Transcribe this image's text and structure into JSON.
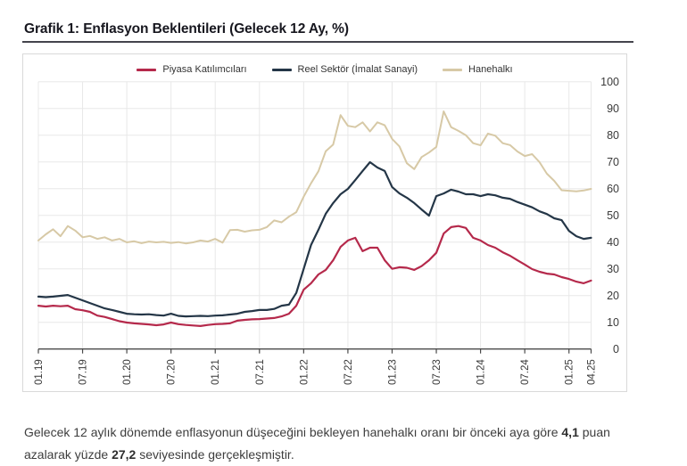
{
  "title": "Grafik 1: Enflasyon Beklentileri (Gelecek 12 Ay, %)",
  "colors": {
    "market": "#b5294b",
    "real_sector": "#243647",
    "household": "#d7c9a6",
    "grid": "#e8e8e8",
    "axis": "#4a4a4a",
    "tick_text": "#3a3a3a",
    "box_border": "#d9d9d9",
    "title_text": "#17171f"
  },
  "legend": [
    {
      "key": "piyasa",
      "label": "Piyasa Katılımcıları",
      "color": "#b5294b"
    },
    {
      "key": "reel",
      "label": "Reel Sektör (İmalat Sanayi)",
      "color": "#243647"
    },
    {
      "key": "hanehalki",
      "label": "Hanehalkı",
      "color": "#d7c9a6"
    }
  ],
  "chart_data": {
    "type": "line",
    "title": "Grafik 1: Enflasyon Beklentileri (Gelecek 12 Ay, %)",
    "x_start": "2019-01",
    "x_end": "2025-04",
    "x_unit": "month",
    "grid": true,
    "legend_position": "top",
    "y_axis_side": "right",
    "ylim": [
      0,
      100
    ],
    "y_ticks": [
      0,
      10,
      20,
      30,
      40,
      50,
      60,
      70,
      80,
      90,
      100
    ],
    "x_tick_labels": [
      "01.19",
      "07.19",
      "01.20",
      "07.20",
      "01.21",
      "07.21",
      "01.22",
      "07.22",
      "01.23",
      "07.23",
      "01.24",
      "07.24",
      "01.25",
      "04.25"
    ],
    "x_tick_month_index": [
      0,
      6,
      12,
      18,
      24,
      30,
      36,
      42,
      48,
      54,
      60,
      66,
      72,
      75
    ],
    "series": [
      {
        "name": "Hanehalkı",
        "key": "hanehalki",
        "color": "#d7c9a6",
        "values": [
          40.6,
          42.9,
          44.8,
          42.2,
          46.0,
          44.3,
          41.8,
          42.3,
          41.2,
          41.8,
          40.6,
          41.2,
          39.9,
          40.3,
          39.6,
          40.2,
          39.9,
          40.1,
          39.7,
          40.0,
          39.5,
          39.9,
          40.6,
          40.2,
          41.2,
          39.8,
          44.5,
          44.6,
          43.9,
          44.4,
          44.6,
          45.6,
          48.1,
          47.4,
          49.5,
          51.2,
          57.0,
          62.0,
          66.5,
          74.0,
          76.5,
          87.5,
          83.5,
          83.0,
          84.8,
          81.4,
          84.8,
          83.7,
          78.6,
          75.8,
          69.5,
          67.3,
          71.8,
          73.5,
          75.6,
          88.9,
          83.0,
          81.6,
          80.0,
          77.0,
          76.2,
          80.6,
          79.8,
          77.0,
          76.3,
          73.9,
          72.2,
          72.9,
          69.9,
          65.6,
          62.9,
          59.4,
          59.2,
          59.0,
          59.3,
          59.9
        ]
      },
      {
        "name": "Reel Sektör (İmalat Sanayi)",
        "key": "reel",
        "color": "#243647",
        "values": [
          19.6,
          19.4,
          19.6,
          19.9,
          20.2,
          19.2,
          18.2,
          17.2,
          16.2,
          15.2,
          14.6,
          13.9,
          13.2,
          13.0,
          12.9,
          13.0,
          12.7,
          12.5,
          13.2,
          12.4,
          12.2,
          12.3,
          12.4,
          12.3,
          12.5,
          12.6,
          12.9,
          13.2,
          13.9,
          14.2,
          14.6,
          14.6,
          15.0,
          16.2,
          16.6,
          21.0,
          30.0,
          38.9,
          44.6,
          50.6,
          54.6,
          57.9,
          59.9,
          63.2,
          66.6,
          69.9,
          67.9,
          66.6,
          60.6,
          58.2,
          56.6,
          54.6,
          52.2,
          49.9,
          57.2,
          58.2,
          59.6,
          58.9,
          57.9,
          57.9,
          57.2,
          57.9,
          57.5,
          56.6,
          56.2,
          55.0,
          54.0,
          53.0,
          51.5,
          50.5,
          48.9,
          48.2,
          44.2,
          42.2,
          41.2,
          41.6
        ]
      },
      {
        "name": "Piyasa Katılımcıları",
        "key": "piyasa",
        "color": "#b5294b",
        "values": [
          16.2,
          15.9,
          16.2,
          16.0,
          16.2,
          14.9,
          14.5,
          13.9,
          12.5,
          12.0,
          11.2,
          10.4,
          9.9,
          9.6,
          9.4,
          9.2,
          8.9,
          9.2,
          9.9,
          9.3,
          9.0,
          8.8,
          8.6,
          9.0,
          9.3,
          9.4,
          9.6,
          10.6,
          10.9,
          11.1,
          11.2,
          11.4,
          11.6,
          12.2,
          13.2,
          16.2,
          22.2,
          24.6,
          27.9,
          29.6,
          33.2,
          38.2,
          40.6,
          41.6,
          36.6,
          37.9,
          37.9,
          33.2,
          30.0,
          30.6,
          30.4,
          29.6,
          31.0,
          33.2,
          36.0,
          43.2,
          45.6,
          46.0,
          45.3,
          41.6,
          40.6,
          38.9,
          37.9,
          36.2,
          34.9,
          33.2,
          31.6,
          29.9,
          28.9,
          28.2,
          27.9,
          26.9,
          26.2,
          25.2,
          24.6,
          25.6
        ]
      }
    ]
  },
  "footnote": {
    "parts": [
      {
        "text": "Gelecek 12 aylık dönemde enflasyonun düşeceğini bekleyen hanehalkı oranı bir önceki aya göre ",
        "bold": false
      },
      {
        "text": "4,1",
        "bold": true
      },
      {
        "text": " puan azalarak yüzde ",
        "bold": false
      },
      {
        "text": "27,2",
        "bold": true
      },
      {
        "text": " seviyesinde gerçekleşmiştir.",
        "bold": false
      }
    ]
  }
}
